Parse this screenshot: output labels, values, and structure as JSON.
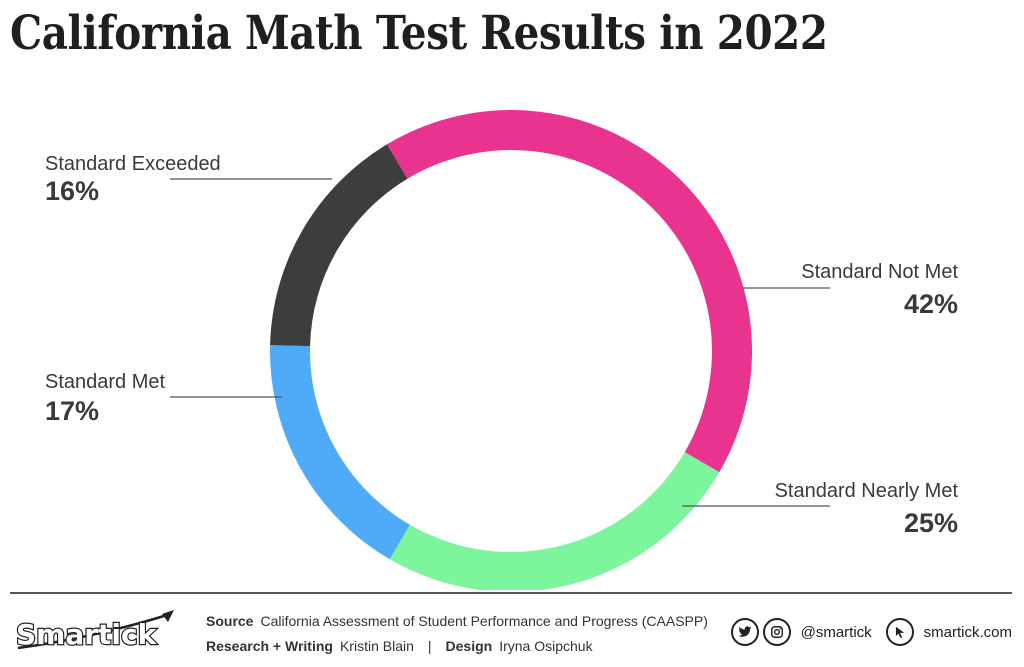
{
  "page": {
    "title": "California Math Test Results in 2022"
  },
  "chart_data": {
    "type": "pie",
    "variant": "donut",
    "title": "California Math Test Results in 2022",
    "slices": [
      {
        "label": "Standard Not Met",
        "value": 42,
        "value_label": "42%",
        "color": "#e8348f"
      },
      {
        "label": "Standard Nearly Met",
        "value": 25,
        "value_label": "25%",
        "color": "#7df59c"
      },
      {
        "label": "Standard Met",
        "value": 17,
        "value_label": "17%",
        "color": "#4fabf7"
      },
      {
        "label": "Standard Exceeded",
        "value": 16,
        "value_label": "16%",
        "color": "#3d3d3d"
      }
    ]
  },
  "footer": {
    "logo_text": "Smartick",
    "source_label": "Source",
    "source_text": "California Assessment of Student Performance and Progress (CAASPP)",
    "research_label": "Research + Writing",
    "research_text": "Kristin Blain",
    "separator": "|",
    "design_label": "Design",
    "design_text": "Iryna Osipchuk",
    "handle": "@smartick",
    "website": "smartick.com",
    "icons": [
      "twitter-icon",
      "instagram-icon",
      "cursor-icon"
    ]
  }
}
